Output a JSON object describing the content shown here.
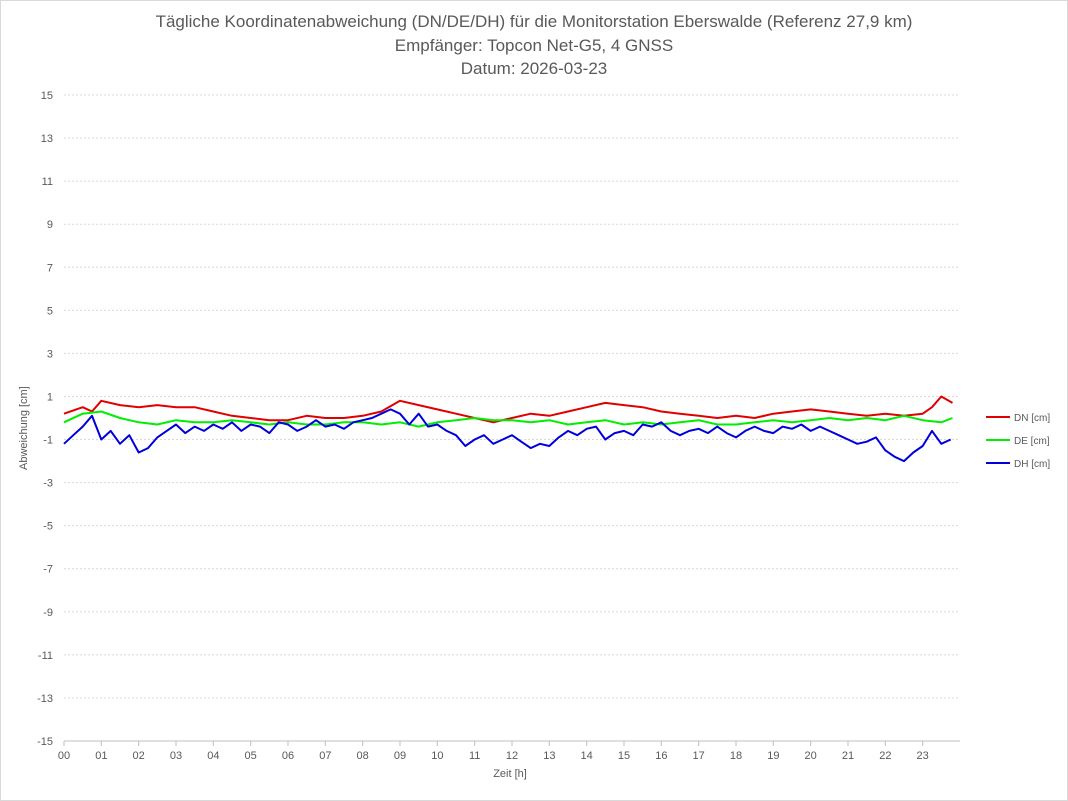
{
  "chart_data": {
    "type": "line",
    "title": "Tägliche Koordinatenabweichung (DN/DE/DH) für die Monitorstation Eberswalde (Referenz 27,9 km)",
    "subtitle": "Empfänger: Topcon Net-G5, 4 GNSS",
    "date_line": "Datum: 2026-03-23",
    "xlabel": "Zeit [h]",
    "ylabel": "Abweichung [cm]",
    "ylim": [
      -15,
      15
    ],
    "xlim": [
      0,
      24
    ],
    "grid": true,
    "legend_position": "right",
    "y_ticks": [
      "15",
      "13",
      "11",
      "9",
      "7",
      "5",
      "3",
      "1",
      "-1",
      "-3",
      "-5",
      "-7",
      "-9",
      "-11",
      "-13",
      "-15"
    ],
    "x_ticks": [
      "00",
      "01",
      "02",
      "03",
      "04",
      "05",
      "06",
      "07",
      "08",
      "09",
      "10",
      "11",
      "12",
      "13",
      "14",
      "15",
      "16",
      "17",
      "18",
      "19",
      "20",
      "21",
      "22",
      "23"
    ],
    "series": [
      {
        "name": "DN [cm]",
        "color": "#e00000",
        "x": [
          0,
          0.5,
          0.75,
          1,
          1.5,
          2,
          2.5,
          3,
          3.5,
          4,
          4.5,
          5,
          5.5,
          6,
          6.5,
          7,
          7.5,
          8,
          8.5,
          9,
          9.5,
          10,
          10.5,
          11,
          11.5,
          12,
          12.5,
          13,
          13.5,
          14,
          14.5,
          15,
          15.5,
          16,
          16.5,
          17,
          17.5,
          18,
          18.5,
          19,
          19.5,
          20,
          20.5,
          21,
          21.5,
          22,
          22.5,
          23,
          23.25,
          23.5,
          23.8
        ],
        "values": [
          0.2,
          0.5,
          0.3,
          0.8,
          0.6,
          0.5,
          0.6,
          0.5,
          0.5,
          0.3,
          0.1,
          0.0,
          -0.1,
          -0.1,
          0.1,
          0.0,
          0.0,
          0.1,
          0.3,
          0.8,
          0.6,
          0.4,
          0.2,
          0.0,
          -0.2,
          0.0,
          0.2,
          0.1,
          0.3,
          0.5,
          0.7,
          0.6,
          0.5,
          0.3,
          0.2,
          0.1,
          0.0,
          0.1,
          0.0,
          0.2,
          0.3,
          0.4,
          0.3,
          0.2,
          0.1,
          0.2,
          0.1,
          0.2,
          0.5,
          1.0,
          0.7
        ]
      },
      {
        "name": "DE [cm]",
        "color": "#00ee00",
        "x": [
          0,
          0.5,
          1,
          1.5,
          2,
          2.5,
          3,
          3.5,
          4,
          4.5,
          5,
          5.5,
          6,
          6.5,
          7,
          7.5,
          8,
          8.5,
          9,
          9.5,
          10,
          10.5,
          11,
          11.5,
          12,
          12.5,
          13,
          13.5,
          14,
          14.5,
          15,
          15.5,
          16,
          16.5,
          17,
          17.5,
          18,
          18.5,
          19,
          19.5,
          20,
          20.5,
          21,
          21.5,
          22,
          22.5,
          23,
          23.5,
          23.8
        ],
        "values": [
          -0.2,
          0.2,
          0.3,
          0.0,
          -0.2,
          -0.3,
          -0.1,
          -0.2,
          -0.2,
          -0.1,
          -0.2,
          -0.3,
          -0.2,
          -0.3,
          -0.3,
          -0.2,
          -0.2,
          -0.3,
          -0.2,
          -0.4,
          -0.2,
          -0.1,
          0.0,
          -0.1,
          -0.1,
          -0.2,
          -0.1,
          -0.3,
          -0.2,
          -0.1,
          -0.3,
          -0.2,
          -0.3,
          -0.2,
          -0.1,
          -0.3,
          -0.3,
          -0.2,
          -0.1,
          -0.2,
          -0.1,
          0.0,
          -0.1,
          0.0,
          -0.1,
          0.1,
          -0.1,
          -0.2,
          0.0
        ]
      },
      {
        "name": "DH [cm]",
        "color": "#0000dd",
        "x": [
          0,
          0.25,
          0.5,
          0.75,
          1,
          1.25,
          1.5,
          1.75,
          2,
          2.25,
          2.5,
          2.75,
          3,
          3.25,
          3.5,
          3.75,
          4,
          4.25,
          4.5,
          4.75,
          5,
          5.25,
          5.5,
          5.75,
          6,
          6.25,
          6.5,
          6.75,
          7,
          7.25,
          7.5,
          7.75,
          8,
          8.25,
          8.5,
          8.75,
          9,
          9.25,
          9.5,
          9.75,
          10,
          10.25,
          10.5,
          10.75,
          11,
          11.25,
          11.5,
          11.75,
          12,
          12.25,
          12.5,
          12.75,
          13,
          13.25,
          13.5,
          13.75,
          14,
          14.25,
          14.5,
          14.75,
          15,
          15.25,
          15.5,
          15.75,
          16,
          16.25,
          16.5,
          16.75,
          17,
          17.25,
          17.5,
          17.75,
          18,
          18.25,
          18.5,
          18.75,
          19,
          19.25,
          19.5,
          19.75,
          20,
          20.25,
          20.5,
          20.75,
          21,
          21.25,
          21.5,
          21.75,
          22,
          22.25,
          22.5,
          22.75,
          23,
          23.25,
          23.5,
          23.75
        ],
        "values": [
          -1.2,
          -0.8,
          -0.4,
          0.1,
          -1.0,
          -0.6,
          -1.2,
          -0.8,
          -1.6,
          -1.4,
          -0.9,
          -0.6,
          -0.3,
          -0.7,
          -0.4,
          -0.6,
          -0.3,
          -0.5,
          -0.2,
          -0.6,
          -0.3,
          -0.4,
          -0.7,
          -0.2,
          -0.3,
          -0.6,
          -0.4,
          -0.1,
          -0.4,
          -0.3,
          -0.5,
          -0.2,
          -0.1,
          0.0,
          0.2,
          0.4,
          0.2,
          -0.3,
          0.2,
          -0.4,
          -0.3,
          -0.6,
          -0.8,
          -1.3,
          -1.0,
          -0.8,
          -1.2,
          -1.0,
          -0.8,
          -1.1,
          -1.4,
          -1.2,
          -1.3,
          -0.9,
          -0.6,
          -0.8,
          -0.5,
          -0.4,
          -1.0,
          -0.7,
          -0.6,
          -0.8,
          -0.3,
          -0.4,
          -0.2,
          -0.6,
          -0.8,
          -0.6,
          -0.5,
          -0.7,
          -0.4,
          -0.7,
          -0.9,
          -0.6,
          -0.4,
          -0.6,
          -0.7,
          -0.4,
          -0.5,
          -0.3,
          -0.6,
          -0.4,
          -0.6,
          -0.8,
          -1.0,
          -1.2,
          -1.1,
          -0.9,
          -1.5,
          -1.8,
          -2.0,
          -1.6,
          -1.3,
          -0.6,
          -1.2,
          -1.0
        ]
      }
    ]
  }
}
